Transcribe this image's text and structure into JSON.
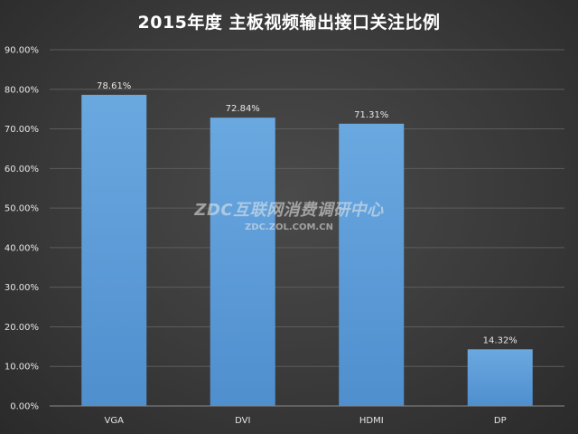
{
  "chart_data": {
    "type": "bar",
    "title": "2015年度 主板视频输出接口关注比例",
    "categories": [
      "VGA",
      "DVI",
      "HDMI",
      "DP"
    ],
    "values": [
      78.61,
      72.84,
      71.31,
      14.32
    ],
    "value_labels": [
      "78.61%",
      "72.84%",
      "71.31%",
      "14.32%"
    ],
    "yticks": [
      "0.00%",
      "10.00%",
      "20.00%",
      "30.00%",
      "40.00%",
      "50.00%",
      "60.00%",
      "70.00%",
      "80.00%",
      "90.00%"
    ],
    "ylim": [
      0,
      90
    ],
    "grid": true,
    "bar_color": "#5b9bd5",
    "xlabel": "",
    "ylabel": ""
  },
  "watermark": {
    "text": "ZDC互联网消费调研中心",
    "url": "ZDC.ZOL.COM.CN"
  }
}
